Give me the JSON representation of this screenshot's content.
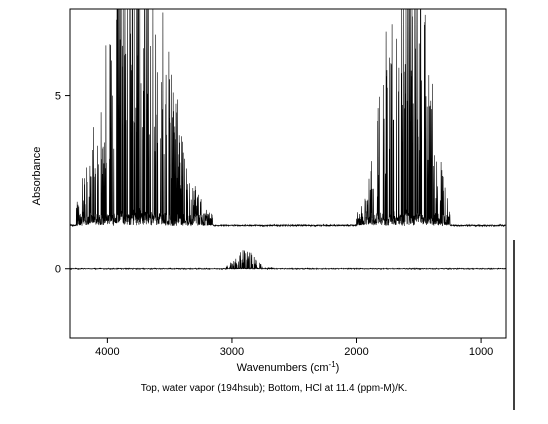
{
  "chart_data": {
    "type": "line",
    "xlabel": "Wavenumbers (cm",
    "xlabel_sup": "-1",
    "xlabel_close": ")",
    "ylabel": "Absorbance",
    "xlim": [
      4300,
      800
    ],
    "ylim": [
      -2.0,
      7.5
    ],
    "x_ticks": [
      4000,
      3000,
      2000,
      1000
    ],
    "y_ticks": [
      0,
      5
    ],
    "grid": false,
    "series": [
      {
        "description_key": "top",
        "baseline": 1.25,
        "bands": [
          {
            "from": 4250,
            "to": 3150,
            "center": 3760,
            "peak_env": 6.5
          },
          {
            "from": 2000,
            "to": 1250,
            "center": 1600,
            "peak_env": 6.5
          }
        ]
      },
      {
        "description_key": "bottom",
        "baseline": 0.0,
        "bands": [
          {
            "from": 3050,
            "to": 2650,
            "center": 2885,
            "peak_env": 0.35
          }
        ]
      }
    ]
  },
  "caption": "Top, water vapor (194hsub);  Bottom, HCl at 11.4 (ppm-M)/K."
}
